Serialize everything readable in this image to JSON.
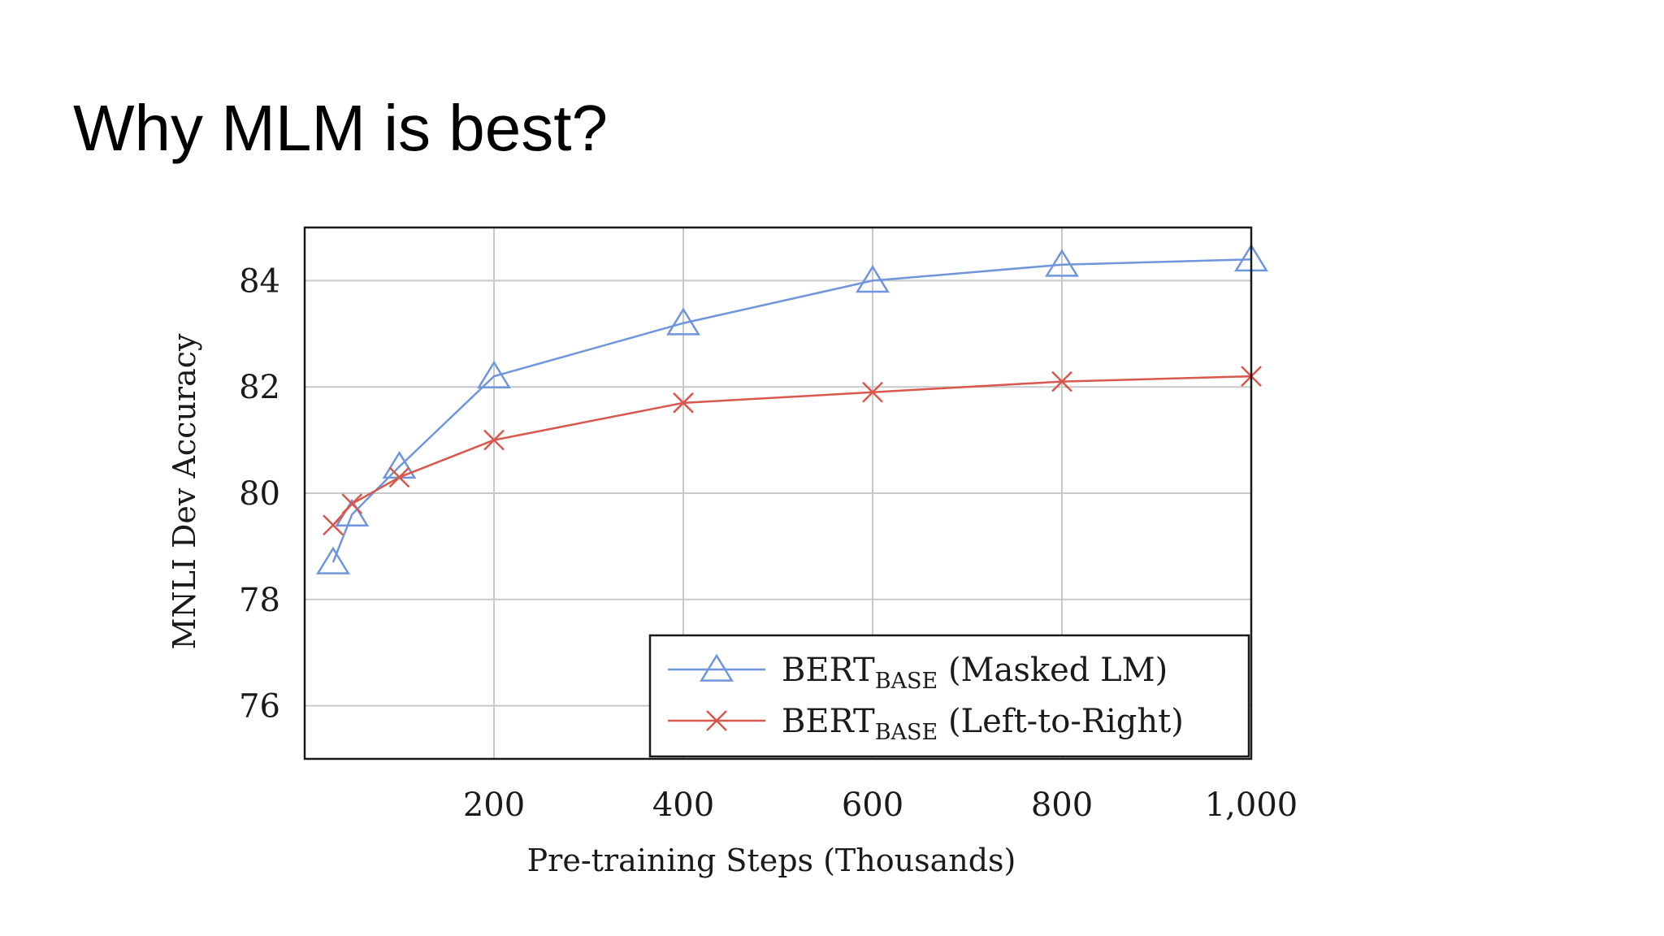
{
  "slide": {
    "title": "Why MLM is best?"
  },
  "chart_data": {
    "type": "line",
    "title": "",
    "xlabel": "Pre-training Steps (Thousands)",
    "ylabel": "MNLI Dev Accuracy",
    "xlim": [
      0,
      1000
    ],
    "ylim": [
      75,
      85
    ],
    "xticks": [
      200,
      400,
      600,
      800,
      1000
    ],
    "xtick_labels": [
      "200",
      "400",
      "600",
      "800",
      "1,000"
    ],
    "yticks": [
      76,
      78,
      80,
      82,
      84
    ],
    "ytick_labels": [
      "76",
      "78",
      "80",
      "82",
      "84"
    ],
    "grid": true,
    "legend_position": "bottom-right",
    "series": [
      {
        "name": "BERTBASE (Masked LM)",
        "legend_main": "BERT",
        "legend_sub": "BASE",
        "legend_rest": " (Masked LM)",
        "marker": "triangle",
        "color": "#6f95dc",
        "x": [
          30,
          50,
          100,
          200,
          400,
          600,
          800,
          1000
        ],
        "y": [
          78.7,
          79.6,
          80.5,
          82.2,
          83.2,
          84.0,
          84.3,
          84.4
        ]
      },
      {
        "name": "BERTBASE (Left-to-Right)",
        "legend_main": "BERT",
        "legend_sub": "BASE",
        "legend_rest": " (Left-to-Right)",
        "marker": "x",
        "color": "#d9574c",
        "x": [
          30,
          50,
          100,
          200,
          400,
          600,
          800,
          1000
        ],
        "y": [
          79.4,
          79.8,
          80.3,
          81.0,
          81.7,
          81.9,
          82.1,
          82.2
        ]
      }
    ]
  }
}
